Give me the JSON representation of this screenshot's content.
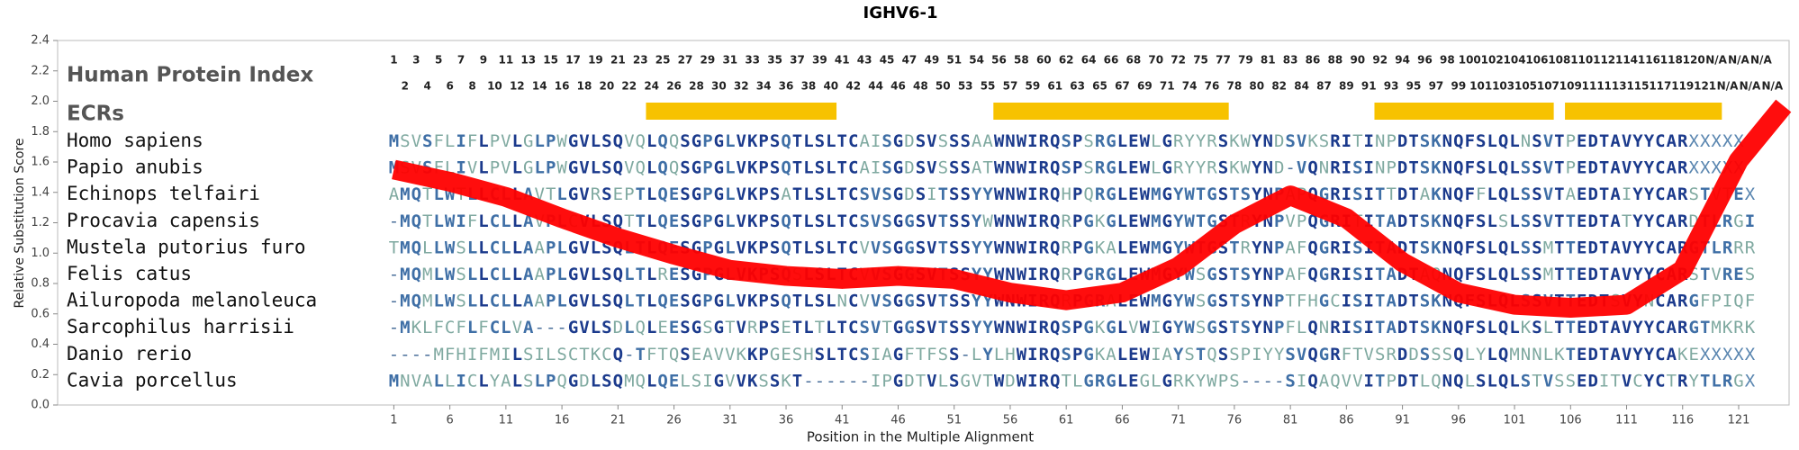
{
  "chart_data": {
    "type": "line",
    "title": "IGHV6-1",
    "xlabel": "Position in the Multiple Alignment",
    "ylabel": "Relative Substitution Score",
    "xlim": [
      -29,
      125.5
    ],
    "xticks": [
      1,
      6,
      11,
      16,
      21,
      26,
      31,
      36,
      41,
      46,
      51,
      56,
      61,
      66,
      71,
      76,
      81,
      86,
      91,
      96,
      101,
      106,
      111,
      116,
      121
    ],
    "ylim": [
      0,
      2.4
    ],
    "yticks": [
      {
        "value": 0,
        "label": "0.0"
      },
      0.2,
      0.4,
      0.6,
      0.8,
      {
        "value": 1,
        "label": "1.0"
      },
      1.2,
      1.4,
      1.6,
      1.8,
      {
        "value": 2,
        "label": "2.0"
      },
      2.2,
      2.4
    ],
    "x": [
      1,
      6,
      11,
      16,
      21,
      26,
      31,
      36,
      41,
      46,
      51,
      56,
      61,
      66,
      71,
      76,
      81,
      86,
      91,
      96,
      101,
      106,
      111,
      116,
      121,
      125
    ],
    "series": [
      {
        "color": "#ff0000",
        "values": [
          1.55,
          1.47,
          1.37,
          1.23,
          1.1,
          0.99,
          0.89,
          0.85,
          0.83,
          0.85,
          0.83,
          0.74,
          0.69,
          0.74,
          0.91,
          1.19,
          1.38,
          1.23,
          0.94,
          0.74,
          0.66,
          0.64,
          0.66,
          0.89,
          1.61,
          1.97
        ]
      }
    ],
    "index_label": "Human Protein Index",
    "index_top": [
      1,
      3,
      5,
      7,
      9,
      11,
      13,
      15,
      17,
      19,
      21,
      23,
      25,
      27,
      29,
      31,
      33,
      35,
      37,
      39,
      41,
      43,
      45,
      47,
      49,
      51,
      54,
      56,
      58,
      60,
      62,
      64,
      66,
      68,
      70,
      72,
      75,
      77,
      79,
      81,
      83,
      86,
      88,
      90,
      92,
      94,
      96,
      98,
      100,
      102,
      104,
      106,
      108,
      110,
      112,
      114,
      116,
      118,
      120,
      "N/A",
      "N/A",
      "N/A"
    ],
    "index_bottom": [
      2,
      4,
      6,
      8,
      10,
      12,
      14,
      16,
      18,
      20,
      22,
      24,
      26,
      28,
      30,
      32,
      34,
      36,
      38,
      40,
      42,
      44,
      46,
      48,
      50,
      53,
      55,
      57,
      59,
      61,
      63,
      65,
      67,
      69,
      71,
      74,
      76,
      78,
      80,
      82,
      84,
      87,
      89,
      91,
      93,
      95,
      97,
      99,
      101,
      103,
      105,
      107,
      109,
      111,
      113,
      115,
      117,
      119,
      121,
      "N/A",
      "N/A",
      "N/A"
    ],
    "ecr_label": "ECRs",
    "ecr_color": "#f7c200",
    "ecrs": [
      [
        24,
        40
      ],
      [
        55,
        75
      ],
      [
        89,
        104
      ],
      [
        106,
        119
      ]
    ],
    "rows": [
      {
        "species": "Homo sapiens",
        "sequence": "MSVSFLIFLPVLGLPWGVLSQVQLQQSGPGLVKPSQTLSLTCAISGDSVSSSAAWNWIRQSPSRGLEWLGRYYRSKWYNDSVKSRITINPDTSKNQFSLQLNSVTPEDTAVYYCARXXXXX"
      },
      {
        "species": "Papio anubis",
        "sequence": "MSVSFLIVLPVLGLPWGVLSQVQLQQSGPGLVKPSQTLSLTCAISGDSVSSSATWNWIRQSPSRGLEWLGRYYRSKWYND-VQNRISINPDTSKNQFSLQLSSVTPEDTAVYYCARXXXXX"
      },
      {
        "species": "Echinops telfairi",
        "sequence": "AMQTLWTLLCLLAVTLGVRSEPTLQESGPGLVKPSATLSLTCSVSGDSITSSYYWNWIRQHPQRGLEWMGYWTGSTSYNPAPQGRISITTDTAKNQFFLQLSSVTAEDTAIYYCARSTVTEX"
      },
      {
        "species": "Procavia capensis",
        "sequence": "-MQTLWIFLCLLAVPLCVLSQTTLQESGPGLVKPSQTLSLTCSVSGGSVTSSYWWNWIRQRPGKGLEWMGYWTGSTRYNPVPQGRITITADTSKNQFSLSLSSVTTEDTATYYCARDTLRGI"
      },
      {
        "species": "Mustela putorius furo",
        "sequence": "TMQLLWSLLCLLAAPLGVLSQLTLQESGPGLVKPSQTLSLTCVVSGGSVTSSYYWNWIRQRPGKALEWMGYWTGSTRYNPAFQGRISITADTSKNQFSLQLSSMTTEDTAVYYCARGTLRRR"
      },
      {
        "species": "Felis catus",
        "sequence": "-MQMLWSLLCLLAAPLGVLSQLTLRESGPGLVKPSQSLSLTCVVSGGSVTSSYYWNWIRQRPGRGLEWMGYWSGSTSYNPAFQGRISITADTAQNQFSLQLSSMTTEDTAVYYCARSTVRES"
      },
      {
        "species": "Ailuropoda melanoleuca",
        "sequence": "-MQMLWSLLCLLAAPLGVLSQLTLQESGPGLVKPSQTLSLNCVVSGGSVTSSYYWNWIRQRPGRALEWMGYWSGSTSYNPTFHGCISITADTSKNQFSLQLSSVTTEDTSVYNCARGFPIQF"
      },
      {
        "species": "Sarcophilus harrisii",
        "sequence": "-MKLFCFLFCLVA---GVLSDLQLEESGSGTVRPSETLTLTCSVTGGSVTSSYYWNWIRQSPGKGLVWIGYWSGSTSYNPFLQNRISITADTSKNQFSLQLKSLTTEDTAVYYCARGTMKRK"
      },
      {
        "species": "Danio rerio",
        "sequence": "----MFHIFMILSILSCTKCQ-TFTQSEAVVKKPGESHSLTCSIAGFTFSS-LYLHWIRQSPGKALEWIAYSTQSSPIYYSVQGRFTVSRDDSSSQLYLQMNNLKTEDTAVYYCAKEXXXXX"
      },
      {
        "species": "Cavia porcellus",
        "sequence": "MNVALLICLYALSLPQGDLSQMQLQELSIGVVKSSKT------IPGDTVLSGVTWDWIRQTLGRGLEGLGRKYWPS----SIQAQVVITPDTLQNQLSLQLSTVSSEDITVCYCTRYTLRGX"
      }
    ]
  }
}
